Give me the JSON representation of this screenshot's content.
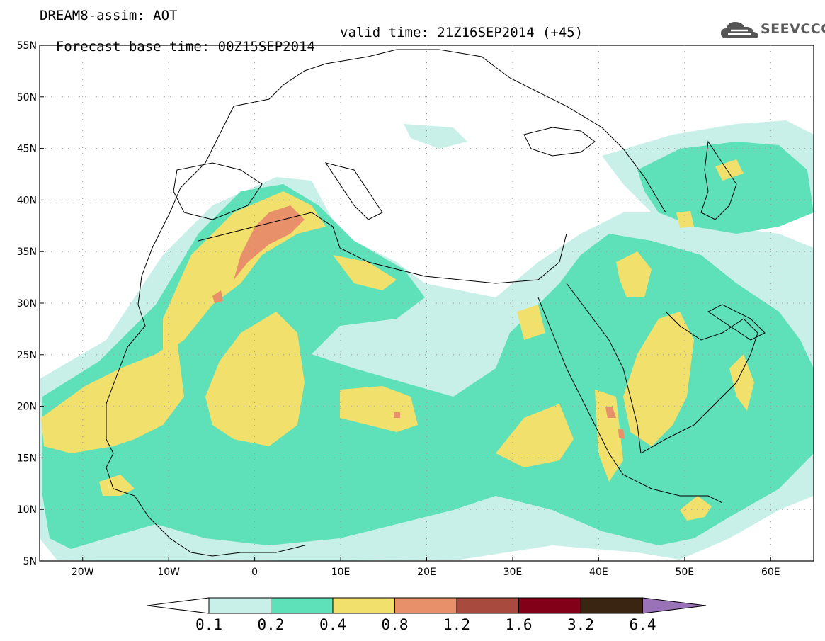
{
  "header": {
    "title_line1": "DREAM8-assim: AOT",
    "title_line2": "Forecast base time: 00Z15SEP2014",
    "valid_time": "valid time: 21Z16SEP2014 (+45)"
  },
  "logo": {
    "text": "SEEVCCC",
    "icon": "cloud-icon"
  },
  "map": {
    "lon_range": [
      -25,
      65
    ],
    "lat_range": [
      5,
      55
    ],
    "lat_labels": [
      "55N",
      "50N",
      "45N",
      "40N",
      "35N",
      "30N",
      "25N",
      "20N",
      "15N",
      "10N",
      "5N"
    ],
    "lon_labels": [
      "20W",
      "10W",
      "0",
      "10E",
      "20E",
      "30E",
      "40E",
      "50E",
      "60E"
    ],
    "grid": "dotted"
  },
  "colorbar": {
    "labels": [
      "0.1",
      "0.2",
      "0.4",
      "0.8",
      "1.2",
      "1.6",
      "3.2",
      "6.4"
    ],
    "colors": [
      "#c8f0e8",
      "#5ee0b8",
      "#f2e06c",
      "#e8906a",
      "#a84a3e",
      "#820018",
      "#3a2412",
      "#9a72b8"
    ],
    "under_color": "#ffffff"
  }
}
